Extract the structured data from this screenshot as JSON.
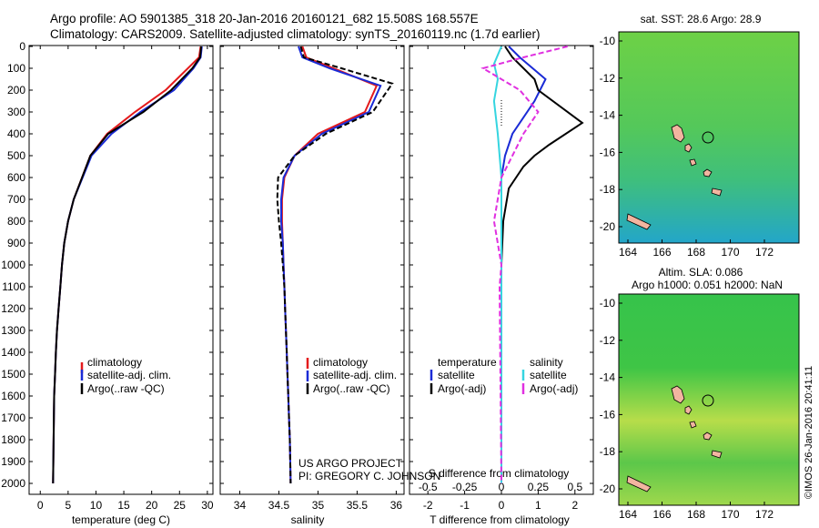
{
  "header": {
    "line1": "Argo profile: AO 5901385_318 20-Jan-2016 20160121_682 15.508S 168.557E",
    "line2": "Climatology: CARS2009. Satellite-adjusted climatology: synTS_20160119.nc (1.7d earlier)"
  },
  "colors": {
    "climatology": "#e41a1c",
    "satellite": "#1a2bd6",
    "argo": "#000000",
    "sat_salinity": "#35d5e0",
    "argo_salinity": "#e030e0"
  },
  "depth_ticks": [
    "0",
    "100",
    "200",
    "300",
    "400",
    "500",
    "600",
    "700",
    "800",
    "900",
    "1000",
    "1100",
    "1200",
    "1300",
    "1400",
    "1500",
    "1600",
    "1700",
    "1800",
    "1900",
    "2000"
  ],
  "panels": {
    "temperature": {
      "xlabel": "temperature (deg C)",
      "xticks": [
        "0",
        "5",
        "10",
        "15",
        "20",
        "25",
        "30"
      ],
      "legend": [
        "climatology",
        "satellite-adj. clim.",
        "Argo(..raw -QC)"
      ]
    },
    "salinity": {
      "xlabel": "salinity",
      "xticks": [
        "34",
        "34.5",
        "35",
        "35.5",
        "36"
      ],
      "legend": [
        "climatology",
        "satellite-adj. clim.",
        "Argo(..raw -QC)"
      ],
      "credit1": "US ARGO PROJECT",
      "credit2": "PI: GREGORY C. JOHNSON"
    },
    "difference": {
      "xlabel": "T difference from climatology",
      "toplabel": "S difference from climatology",
      "xticks_t": [
        "-2",
        "-1",
        "0",
        "1",
        "2"
      ],
      "xticks_s": [
        "-0.5",
        "-0.25",
        "0",
        "0.25",
        "0.5"
      ],
      "legend_t_title": "temperature",
      "legend_s_title": "salinity",
      "legend_t": [
        "satellite",
        "Argo(-adj)"
      ],
      "legend_s": [
        "satellite",
        "Argo(-adj)"
      ]
    }
  },
  "maps": {
    "top_title": "sat. SST: 28.6 Argo: 28.9",
    "bottom_title1": "Altim. SLA: 0.086",
    "bottom_title2": "Argo h1000: 0.051 h2000: NaN",
    "yticks": [
      "-10",
      "-12",
      "-14",
      "-16",
      "-18",
      "-20"
    ],
    "xticks": [
      "164",
      "166",
      "168",
      "170",
      "172"
    ]
  },
  "footer": "©IMOS 26-Jan-2016 20:41:11",
  "chart_data": [
    {
      "type": "line",
      "name": "temperature profile",
      "xlabel": "temperature (deg C)",
      "ylabel": "",
      "xlim": [
        -2,
        31
      ],
      "ylim": [
        2050,
        0
      ],
      "series": [
        {
          "name": "climatology",
          "x": [
            28.8,
            28.5,
            26.5,
            22.5,
            17,
            12,
            9,
            7.5,
            6,
            5,
            4.3,
            3.9,
            3.6,
            3.3,
            3.0,
            2.8,
            2.65,
            2.5,
            2.45,
            2.4,
            2.35,
            2.3
          ],
          "y": [
            0,
            50,
            100,
            200,
            300,
            400,
            500,
            600,
            700,
            800,
            900,
            1000,
            1100,
            1200,
            1300,
            1400,
            1500,
            1600,
            1700,
            1800,
            1900,
            2000
          ]
        },
        {
          "name": "satellite-adj. clim.",
          "x": [
            29.0,
            28.8,
            27.5,
            24,
            18,
            12.8,
            9.2,
            7.6,
            6,
            5,
            4.3,
            3.9,
            3.6,
            3.3,
            3.0,
            2.8,
            2.65,
            2.5,
            2.45,
            2.4,
            2.35,
            2.3
          ],
          "y": [
            0,
            50,
            100,
            200,
            300,
            400,
            500,
            600,
            700,
            800,
            900,
            1000,
            1100,
            1200,
            1300,
            1400,
            1500,
            1600,
            1700,
            1800,
            1900,
            2000
          ]
        },
        {
          "name": "Argo(..raw -QC)",
          "x": [
            28.9,
            28.7,
            27.3,
            23.5,
            18.5,
            12.2,
            9.0,
            7.5,
            6,
            5,
            4.3,
            3.9,
            3.6,
            3.3,
            3.0,
            2.8,
            2.65,
            2.5,
            2.45,
            2.4,
            2.35,
            2.3
          ],
          "y": [
            0,
            50,
            100,
            200,
            300,
            400,
            500,
            600,
            700,
            800,
            900,
            1000,
            1100,
            1200,
            1300,
            1400,
            1500,
            1600,
            1700,
            1800,
            1900,
            2000
          ]
        }
      ]
    },
    {
      "type": "line",
      "name": "salinity profile",
      "xlabel": "salinity",
      "xlim": [
        33.75,
        36.1
      ],
      "ylim": [
        2050,
        0
      ],
      "series": [
        {
          "name": "climatology",
          "x": [
            34.8,
            34.85,
            35.2,
            35.75,
            35.6,
            35.0,
            34.7,
            34.57,
            34.54,
            34.54,
            34.55,
            34.56,
            34.57,
            34.58,
            34.59,
            34.6,
            34.61,
            34.62,
            34.63,
            34.64,
            34.65
          ],
          "y": [
            0,
            50,
            100,
            180,
            300,
            400,
            500,
            600,
            700,
            800,
            900,
            1000,
            1100,
            1200,
            1300,
            1400,
            1500,
            1600,
            1700,
            1800,
            2000
          ]
        },
        {
          "name": "satellite-adj. clim.",
          "x": [
            34.75,
            34.8,
            35.15,
            35.8,
            35.65,
            35.05,
            34.7,
            34.56,
            34.53,
            34.53,
            34.55,
            34.56,
            34.57,
            34.58,
            34.59,
            34.6,
            34.61,
            34.62,
            34.63,
            34.64,
            34.65
          ],
          "y": [
            0,
            50,
            100,
            180,
            300,
            400,
            500,
            600,
            700,
            800,
            900,
            1000,
            1100,
            1200,
            1300,
            1400,
            1500,
            1600,
            1700,
            1800,
            2000
          ]
        },
        {
          "name": "Argo(..raw -QC)",
          "x": [
            34.78,
            34.82,
            35.3,
            35.95,
            35.7,
            35.1,
            34.7,
            34.49,
            34.48,
            34.5,
            34.53,
            34.55,
            34.57,
            34.58,
            34.59,
            34.6,
            34.61,
            34.62,
            34.63,
            34.64,
            34.65
          ],
          "y": [
            0,
            50,
            100,
            170,
            300,
            400,
            500,
            600,
            700,
            800,
            900,
            1000,
            1100,
            1200,
            1300,
            1400,
            1500,
            1600,
            1700,
            1800,
            2000
          ]
        }
      ]
    },
    {
      "type": "line",
      "name": "difference from climatology",
      "xlabel": "T difference from climatology",
      "xlim": [
        -2.5,
        2.5
      ],
      "ylim": [
        2050,
        0
      ],
      "series": [
        {
          "name": "temperature satellite",
          "x": [
            0.2,
            0.5,
            1.2,
            0.9,
            0.3,
            0.1,
            0.0,
            0.0,
            0.0,
            0.0,
            0.0,
            0.0
          ],
          "y": [
            0,
            50,
            150,
            250,
            400,
            500,
            600,
            800,
            1000,
            1400,
            1800,
            2000
          ]
        },
        {
          "name": "temperature Argo(-adj)",
          "x": [
            0.1,
            0.3,
            0.9,
            1.0,
            2.2,
            1.3,
            0.9,
            0.6,
            0.2,
            0.05,
            0.0,
            0.0,
            0.0
          ],
          "y": [
            0,
            50,
            150,
            200,
            350,
            450,
            500,
            550,
            650,
            800,
            1000,
            1500,
            2000
          ]
        },
        {
          "name": "salinity satellite",
          "x": [
            0.0,
            -0.2,
            -0.1,
            -0.2,
            -0.1,
            0.0,
            0.0,
            0.0,
            0.0
          ],
          "y": [
            0,
            80,
            150,
            250,
            400,
            600,
            1000,
            1500,
            2000
          ]
        },
        {
          "name": "salinity Argo(-adj)",
          "x": [
            1.8,
            0.6,
            -0.5,
            0.5,
            1.0,
            0.6,
            0.3,
            0.0,
            -0.2,
            0.0,
            -0.05,
            0.0
          ],
          "y": [
            0,
            50,
            100,
            200,
            300,
            400,
            500,
            600,
            800,
            1000,
            1100,
            2000
          ]
        }
      ]
    }
  ]
}
